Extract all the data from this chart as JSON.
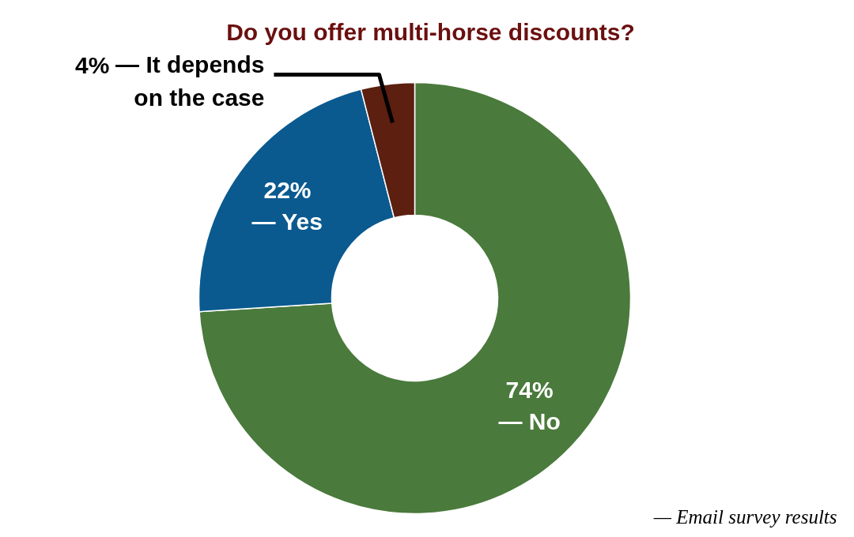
{
  "chart_data": {
    "type": "donut",
    "title": "Do you offer multi-horse discounts?",
    "categories": [
      "— No",
      "— Yes",
      "— It depends on the case"
    ],
    "values": [
      74,
      22,
      4
    ],
    "colors": [
      "#4a7a3c",
      "#0a5a8f",
      "#5c1f10"
    ],
    "value_labels": [
      "74%",
      "22%",
      "4%"
    ],
    "data_labels": true,
    "annotations": [
      "— Email survey results"
    ]
  }
}
